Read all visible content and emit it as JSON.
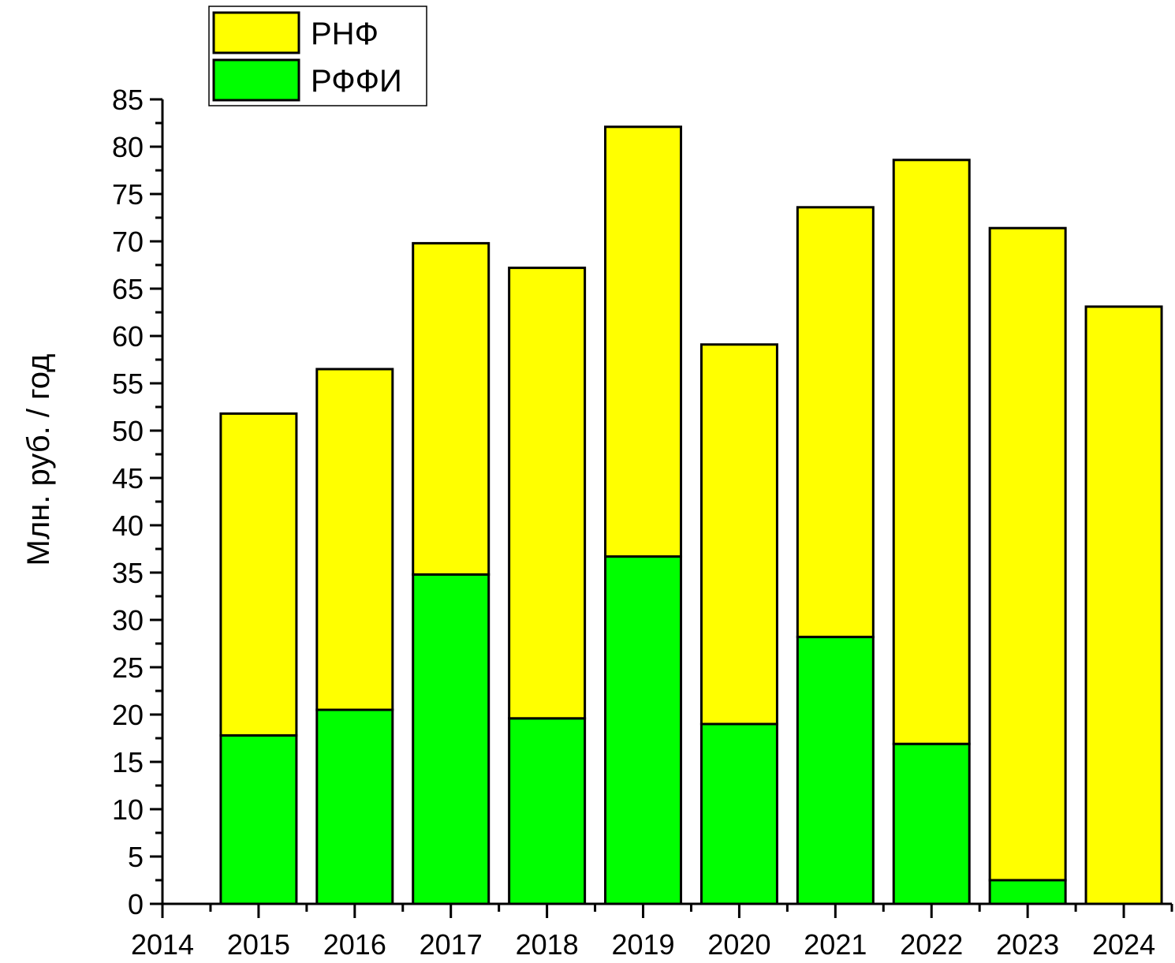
{
  "chart_data": {
    "type": "bar",
    "stacked": true,
    "title": "",
    "xlabel": "",
    "ylabel": "Млн. руб. / год",
    "categories": [
      "2015",
      "2016",
      "2017",
      "2018",
      "2019",
      "2020",
      "2021",
      "2022",
      "2023",
      "2024"
    ],
    "x_ticks": [
      "2014",
      "2015",
      "2016",
      "2017",
      "2018",
      "2019",
      "2020",
      "2021",
      "2022",
      "2023",
      "2024"
    ],
    "xlim": [
      2014,
      2024.5
    ],
    "ylim": [
      0,
      85
    ],
    "y_ticks": [
      "0",
      "5",
      "10",
      "15",
      "20",
      "25",
      "30",
      "35",
      "40",
      "45",
      "50",
      "55",
      "60",
      "65",
      "70",
      "75",
      "80",
      "85"
    ],
    "series": [
      {
        "name": "РФФИ",
        "color": "#00ff00",
        "values": [
          17.8,
          20.5,
          34.8,
          19.6,
          36.7,
          19.0,
          28.2,
          16.9,
          2.5,
          0
        ]
      },
      {
        "name": "РНФ",
        "color": "#ffff00",
        "values": [
          34.0,
          36.0,
          35.0,
          47.6,
          45.4,
          40.1,
          45.4,
          61.7,
          68.9,
          63.1
        ]
      }
    ],
    "legend": {
      "position": "top-left",
      "entries": [
        {
          "name": "РНФ",
          "color": "#ffff00"
        },
        {
          "name": "РФФИ",
          "color": "#00ff00"
        }
      ]
    },
    "grid": false
  }
}
